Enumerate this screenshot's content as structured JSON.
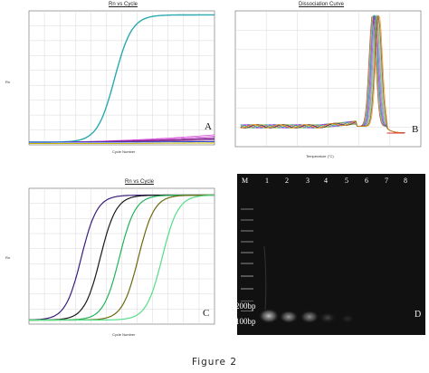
{
  "figure_caption": "Figure 2",
  "panels": {
    "A": {
      "title": "Rn vs Cycle",
      "letter": "A",
      "xlabel": "Cycle Number",
      "ylabel": "Rn"
    },
    "B": {
      "title": "Dissociation Curve",
      "letter": "B",
      "xlabel": "Temperature (°C)"
    },
    "C": {
      "title": "Rn vs Cycle",
      "letter": "C",
      "xlabel": "Cycle Number",
      "ylabel": "Rn"
    },
    "D": {
      "letter": "D",
      "marker_label": "M",
      "lanes": [
        "1",
        "2",
        "3",
        "4",
        "5",
        "6",
        "7",
        "8"
      ],
      "bp_200": "200bp",
      "bp_100": "100bp"
    }
  },
  "chart_data": [
    {
      "type": "line",
      "panel": "A",
      "title": "Rn vs Cycle",
      "xlabel": "Cycle Number",
      "ylabel": "Rn",
      "xlim": [
        1,
        40
      ],
      "ylim": [
        0,
        1
      ],
      "series": [
        {
          "color": "#2aa9b0",
          "midpoint": 19,
          "slope": 0.55,
          "top": 0.97,
          "base": 0.02
        },
        {
          "color": "#cc22cc",
          "flat": [
            0.02,
            0.07
          ]
        },
        {
          "color": "#7a2a8a",
          "flat": [
            0.02,
            0.05
          ]
        },
        {
          "color": "#c8b400",
          "flat": [
            0.01,
            0.015
          ]
        },
        {
          "color": "#2244cc",
          "flat": [
            0.02,
            0.025
          ]
        }
      ]
    },
    {
      "type": "line",
      "panel": "B",
      "title": "Dissociation Curve",
      "xlabel": "Temperature (°C)",
      "xlim": [
        60,
        95
      ],
      "ylim": [
        0,
        1
      ],
      "baseline": 0.15,
      "peak_x": 86.5,
      "peak_y": 0.97,
      "series_colors": [
        "#cc2222",
        "#22aa22",
        "#2244cc",
        "#cc22cc",
        "#22aaaa",
        "#aaaa22",
        "#444444",
        "#ff8800"
      ]
    },
    {
      "type": "line",
      "panel": "C",
      "title": "Rn vs Cycle",
      "xlabel": "Cycle Number",
      "ylabel": "Rn",
      "xlim": [
        1,
        40
      ],
      "ylim": [
        0,
        1
      ],
      "series": [
        {
          "color": "#3a1f7a",
          "midpoint": 12,
          "slope": 0.6
        },
        {
          "color": "#1a1a1a",
          "midpoint": 16,
          "slope": 0.6
        },
        {
          "color": "#22b35a",
          "midpoint": 20,
          "slope": 0.6
        },
        {
          "color": "#6a6a10",
          "midpoint": 24,
          "slope": 0.6
        },
        {
          "color": "#55dd88",
          "midpoint": 29,
          "slope": 0.6
        }
      ]
    }
  ]
}
